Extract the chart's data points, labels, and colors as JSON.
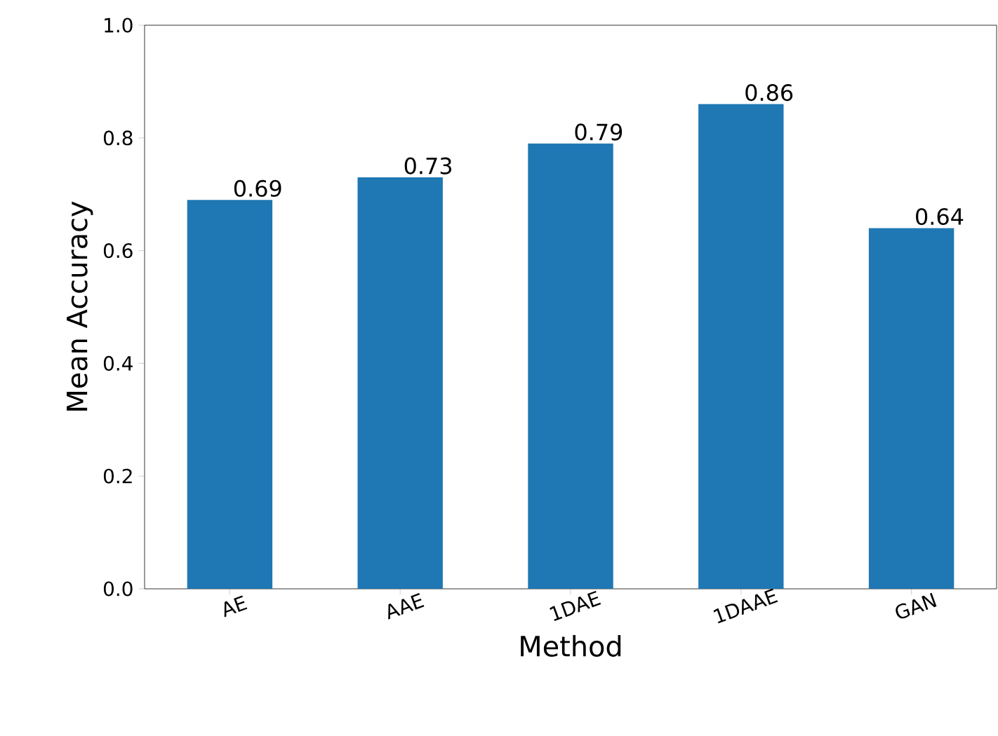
{
  "chart_data": {
    "type": "bar",
    "xlabel": "Method",
    "ylabel": "Mean Accuracy",
    "categories": [
      "AE",
      "AAE",
      "1DAE",
      "1DAAE",
      "GAN"
    ],
    "values": [
      0.69,
      0.73,
      0.79,
      0.86,
      0.64
    ],
    "value_labels": [
      "0.69",
      "0.73",
      "0.79",
      "0.86",
      "0.64"
    ],
    "color": "#1f77b4",
    "ylim": [
      0,
      1
    ],
    "yticks": [
      {
        "value": 0,
        "label": "0.0"
      },
      {
        "value": 0.2,
        "label": "0.2"
      },
      {
        "value": 0.4,
        "label": "0.4"
      },
      {
        "value": 0.6,
        "label": "0.6"
      },
      {
        "value": 0.8,
        "label": "0.8"
      },
      {
        "value": 1,
        "label": "1.0"
      }
    ]
  }
}
